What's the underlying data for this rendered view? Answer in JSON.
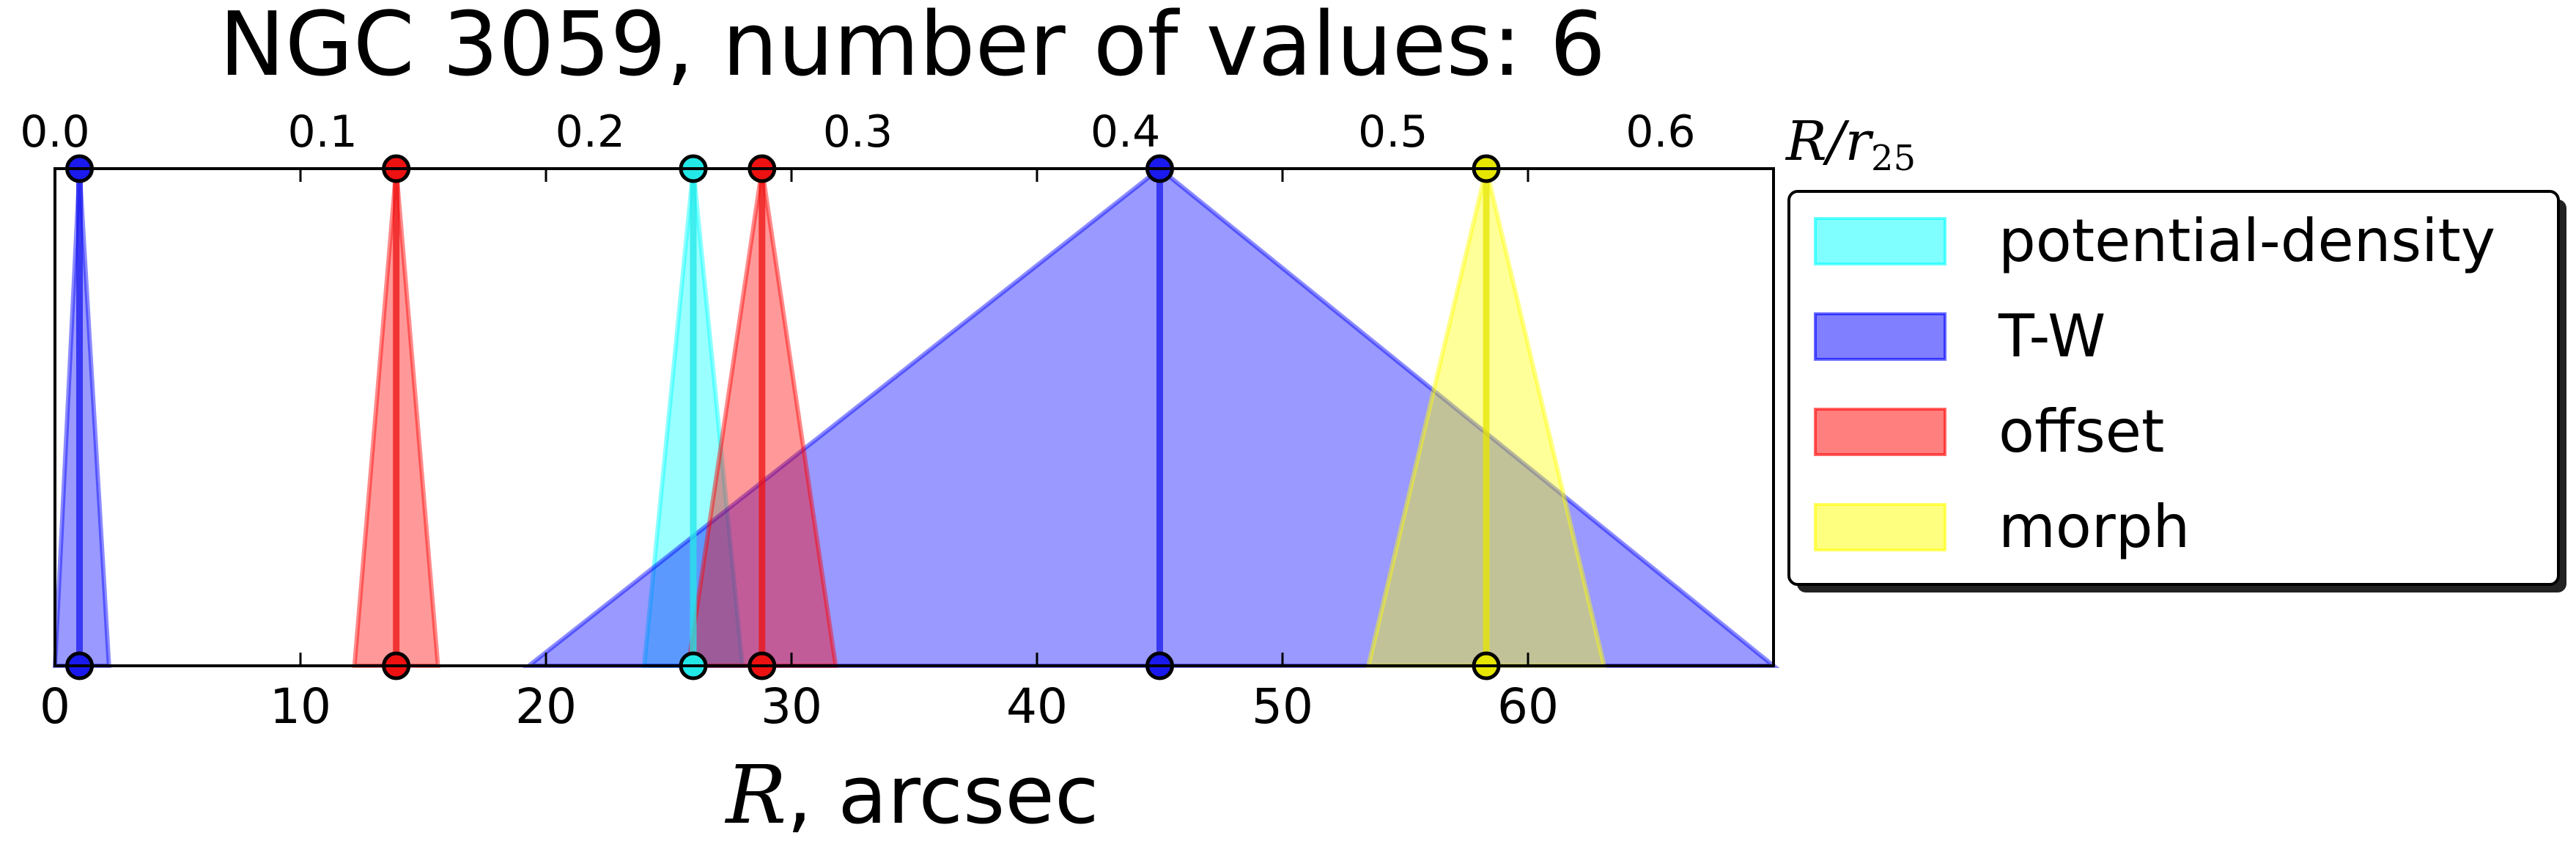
{
  "chart_data": {
    "type": "area",
    "title": "NGC 3059, number of values: 6",
    "xlabel_symbol": "R",
    "xlabel_rest": ", arcsec",
    "xlim": [
      0,
      70
    ],
    "x_ticks": [
      "0",
      "10",
      "20",
      "30",
      "40",
      "50",
      "60"
    ],
    "x_tick_values": [
      0,
      10,
      20,
      30,
      40,
      50,
      60
    ],
    "top_axis": {
      "label_main": "R/r",
      "label_sub": "25",
      "ticks": [
        "0.0",
        "0.1",
        "0.2",
        "0.3",
        "0.4",
        "0.5",
        "0.6"
      ],
      "tick_values": [
        0.0,
        0.1,
        0.2,
        0.3,
        0.4,
        0.5,
        0.6
      ],
      "arcsec_per_unit": 109
    },
    "legend_placement": "outside-right",
    "grid": false,
    "series": [
      {
        "name": "potential-density",
        "color": "#00ffff",
        "line_color": "#22e8e8",
        "markers": [
          {
            "center": 26.0,
            "left": 24.0,
            "right": 28.0
          }
        ]
      },
      {
        "name": "T-W",
        "color": "#0000ff",
        "line_color": "#1a1aee",
        "markers": [
          {
            "center": 1.0,
            "left": 0.0,
            "right": 2.2
          },
          {
            "center": 45.0,
            "left": 19.3,
            "right": 70.0
          }
        ]
      },
      {
        "name": "offset",
        "color": "#ff0000",
        "line_color": "#ee1111",
        "markers": [
          {
            "center": 13.9,
            "left": 12.2,
            "right": 15.6
          },
          {
            "center": 28.8,
            "left": 25.8,
            "right": 31.8
          }
        ]
      },
      {
        "name": "morph",
        "color": "#ffff00",
        "line_color": "#e6e600",
        "markers": [
          {
            "center": 58.3,
            "left": 53.5,
            "right": 63.1
          }
        ]
      }
    ]
  }
}
